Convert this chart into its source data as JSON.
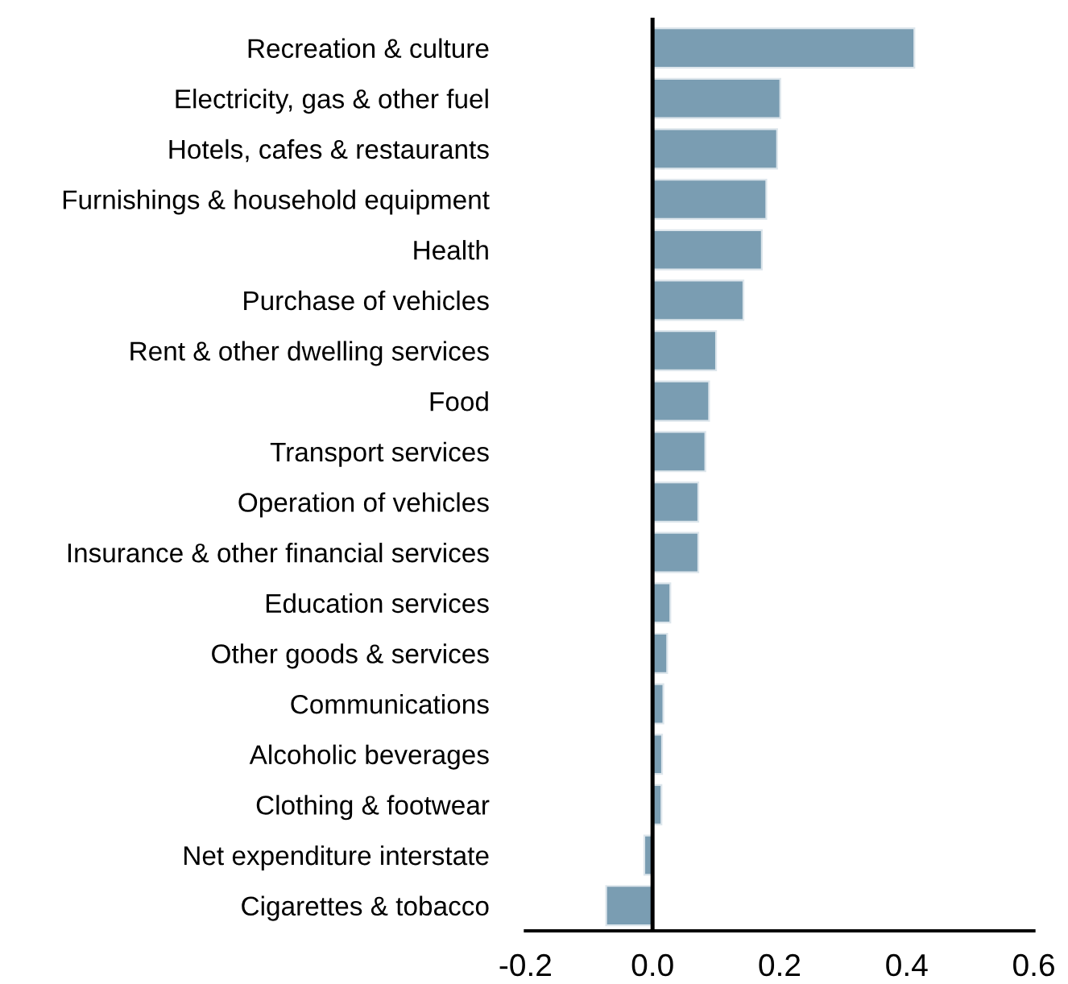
{
  "chart_data": {
    "type": "bar",
    "orientation": "horizontal",
    "categories": [
      "Recreation & culture",
      "Electricity, gas & other fuel",
      "Hotels, cafes & restaurants",
      "Furnishings & household equipment",
      "Health",
      "Purchase of vehicles",
      "Rent & other dwelling services",
      "Food",
      "Transport services",
      "Operation of vehicles",
      "Insurance & other financial services",
      "Education services",
      "Other goods & services",
      "Communications",
      "Alcoholic beverages",
      "Clothing & footwear",
      "Net expenditure interstate",
      "Cigarettes & tobacco"
    ],
    "values": [
      0.412,
      0.201,
      0.196,
      0.179,
      0.172,
      0.143,
      0.1,
      0.089,
      0.083,
      0.072,
      0.072,
      0.028,
      0.023,
      0.017,
      0.015,
      0.014,
      -0.013,
      -0.073
    ],
    "color": "#7a9db2",
    "xlim": [
      -0.2,
      0.6
    ],
    "xticks": [
      {
        "value": -0.2,
        "label": "-0.2"
      },
      {
        "value": 0,
        "label": "0.0"
      },
      {
        "value": 0.2,
        "label": "0.2"
      },
      {
        "value": 0.4,
        "label": "0.4"
      },
      {
        "value": 0.6,
        "label": "0.6"
      }
    ],
    "ref_lines": [
      {
        "axis": "x",
        "value": 0,
        "color": "#000000"
      }
    ],
    "grid": false,
    "legend": false
  }
}
